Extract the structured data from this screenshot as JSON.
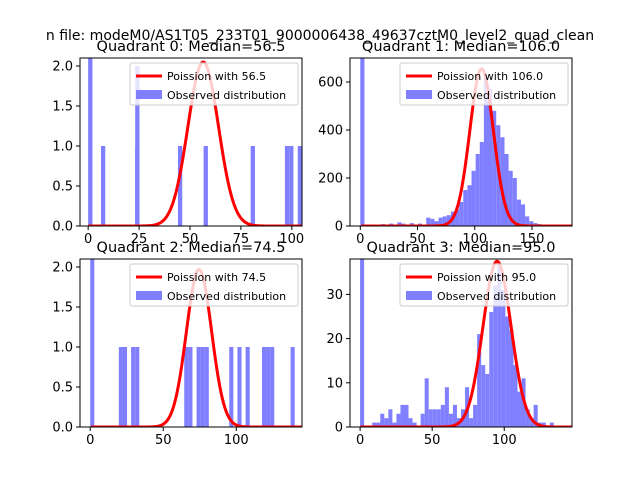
{
  "figure_title": "n file: modeM0/AS1T05_233T01_9000006438_49637cztM0_level2_quad_clean",
  "colors": {
    "poisson": "#ff0000",
    "observed": "#7f7fff",
    "axis": "#000000",
    "background": "#ffffff"
  },
  "chart_data": [
    {
      "type": "bar",
      "title": "Quadrant 0: Median=56.5",
      "xlim": [
        -4,
        105
      ],
      "ylim": [
        0,
        2.1
      ],
      "xticks": [
        0,
        25,
        50,
        75,
        100
      ],
      "xtick_labels": [
        "0",
        "25",
        "50",
        "75",
        "100"
      ],
      "yticks": [
        0,
        0.5,
        1,
        1.5,
        2
      ],
      "ytick_labels": [
        "0.0",
        "0.5",
        "1.0",
        "1.5",
        "2.0"
      ],
      "legend": {
        "location": "top-right",
        "entries": [
          "Poission with 56.5",
          "Observed distribution"
        ]
      },
      "bin_width": 2.1,
      "bars": [
        [
          0,
          2.1
        ],
        [
          6.3,
          1
        ],
        [
          23.1,
          1
        ],
        [
          23.1,
          2
        ],
        [
          44.1,
          1
        ],
        [
          56.7,
          1
        ],
        [
          79.8,
          1
        ],
        [
          96.6,
          1
        ],
        [
          98.7,
          1
        ],
        [
          102.9,
          1
        ]
      ],
      "poisson_mean": 56.5,
      "poisson_peak": 2.05
    },
    {
      "type": "bar",
      "title": "Quadrant 1: Median=106.0",
      "xlim": [
        -9,
        185
      ],
      "ylim": [
        0,
        700
      ],
      "xticks": [
        0,
        50,
        100,
        150
      ],
      "xtick_labels": [
        "0",
        "50",
        "100",
        "150"
      ],
      "yticks": [
        0,
        200,
        400,
        600
      ],
      "ytick_labels": [
        "0",
        "200",
        "400",
        "600"
      ],
      "legend": {
        "location": "top-right",
        "entries": [
          "Poission with 106.0",
          "Observed distribution"
        ]
      },
      "bin_width": 3.6,
      "bars": [
        [
          0,
          700
        ],
        [
          3.6,
          5
        ],
        [
          18,
          8
        ],
        [
          25.2,
          10
        ],
        [
          32.4,
          15
        ],
        [
          36,
          10
        ],
        [
          43.2,
          12
        ],
        [
          50.4,
          10
        ],
        [
          57.6,
          35
        ],
        [
          61.2,
          30
        ],
        [
          64.8,
          20
        ],
        [
          68.4,
          35
        ],
        [
          72,
          40
        ],
        [
          75.6,
          45
        ],
        [
          79.2,
          60
        ],
        [
          82.8,
          70
        ],
        [
          86.4,
          100
        ],
        [
          90,
          150
        ],
        [
          93.6,
          170
        ],
        [
          97.2,
          230
        ],
        [
          100.8,
          300
        ],
        [
          104.4,
          350
        ],
        [
          108,
          620
        ],
        [
          111.6,
          570
        ],
        [
          115.2,
          480
        ],
        [
          118.8,
          420
        ],
        [
          122.4,
          370
        ],
        [
          126,
          300
        ],
        [
          129.6,
          230
        ],
        [
          133.2,
          200
        ],
        [
          136.8,
          110
        ],
        [
          140.4,
          90
        ],
        [
          144,
          40
        ],
        [
          147.6,
          20
        ],
        [
          151.2,
          12
        ],
        [
          154.8,
          8
        ],
        [
          158.4,
          5
        ],
        [
          165.6,
          3
        ],
        [
          172.8,
          2
        ]
      ],
      "poisson_mean": 106,
      "poisson_peak": 655
    },
    {
      "type": "bar",
      "title": "Quadrant 2: Median=74.5",
      "xlim": [
        -7,
        145
      ],
      "ylim": [
        0,
        2.1
      ],
      "xticks": [
        0,
        50,
        100
      ],
      "xtick_labels": [
        "0",
        "50",
        "100"
      ],
      "yticks": [
        0,
        0.5,
        1,
        1.5,
        2
      ],
      "ytick_labels": [
        "0.0",
        "0.5",
        "1.0",
        "1.5",
        "2.0"
      ],
      "legend": {
        "location": "top-right",
        "entries": [
          "Poission with 74.5",
          "Observed distribution"
        ]
      },
      "bin_width": 2.8,
      "bars": [
        [
          0,
          2.1
        ],
        [
          19.6,
          1
        ],
        [
          22.4,
          1
        ],
        [
          28,
          1
        ],
        [
          30.8,
          1
        ],
        [
          64.4,
          1
        ],
        [
          67.2,
          1
        ],
        [
          72.8,
          1
        ],
        [
          75.6,
          1
        ],
        [
          78.4,
          1
        ],
        [
          95.2,
          1
        ],
        [
          100.8,
          1
        ],
        [
          106.4,
          1
        ],
        [
          117.6,
          1
        ],
        [
          120.4,
          1
        ],
        [
          123.2,
          1
        ],
        [
          137.2,
          1
        ]
      ],
      "poisson_mean": 74.5,
      "poisson_peak": 1.97
    },
    {
      "type": "bar",
      "title": "Quadrant 3: Median=95.0",
      "xlim": [
        -7,
        147
      ],
      "ylim": [
        0,
        38
      ],
      "xticks": [
        0,
        50,
        100
      ],
      "xtick_labels": [
        "0",
        "50",
        "100"
      ],
      "yticks": [
        0,
        10,
        20,
        30
      ],
      "ytick_labels": [
        "0",
        "10",
        "20",
        "30"
      ],
      "legend": {
        "location": "top-right",
        "entries": [
          "Poission with 95.0",
          "Observed distribution"
        ]
      },
      "bin_width": 2.8,
      "bars": [
        [
          0,
          38
        ],
        [
          8.4,
          1
        ],
        [
          11.2,
          1
        ],
        [
          14,
          3
        ],
        [
          16.8,
          2
        ],
        [
          19.6,
          4
        ],
        [
          22.4,
          1
        ],
        [
          25.2,
          3
        ],
        [
          28,
          5
        ],
        [
          30.8,
          5
        ],
        [
          33.6,
          2
        ],
        [
          36.4,
          1
        ],
        [
          42,
          3
        ],
        [
          44.8,
          11
        ],
        [
          47.6,
          4
        ],
        [
          50.4,
          4
        ],
        [
          53.2,
          4
        ],
        [
          56,
          5
        ],
        [
          58.8,
          9
        ],
        [
          61.6,
          3
        ],
        [
          64.4,
          5
        ],
        [
          67.2,
          2
        ],
        [
          70,
          4
        ],
        [
          72.8,
          9
        ],
        [
          75.6,
          2
        ],
        [
          78.4,
          5
        ],
        [
          81.2,
          21
        ],
        [
          84,
          14
        ],
        [
          86.8,
          12
        ],
        [
          89.6,
          26
        ],
        [
          92.4,
          32
        ],
        [
          95.2,
          37
        ],
        [
          98,
          31
        ],
        [
          100.8,
          25
        ],
        [
          103.6,
          22
        ],
        [
          106.4,
          14
        ],
        [
          109.2,
          8
        ],
        [
          112,
          11
        ],
        [
          114.8,
          4
        ],
        [
          117.6,
          2
        ],
        [
          120.4,
          5
        ],
        [
          123.2,
          1
        ],
        [
          126,
          1
        ],
        [
          131.6,
          1
        ]
      ],
      "poisson_mean": 95,
      "poisson_peak": 37.5
    }
  ]
}
